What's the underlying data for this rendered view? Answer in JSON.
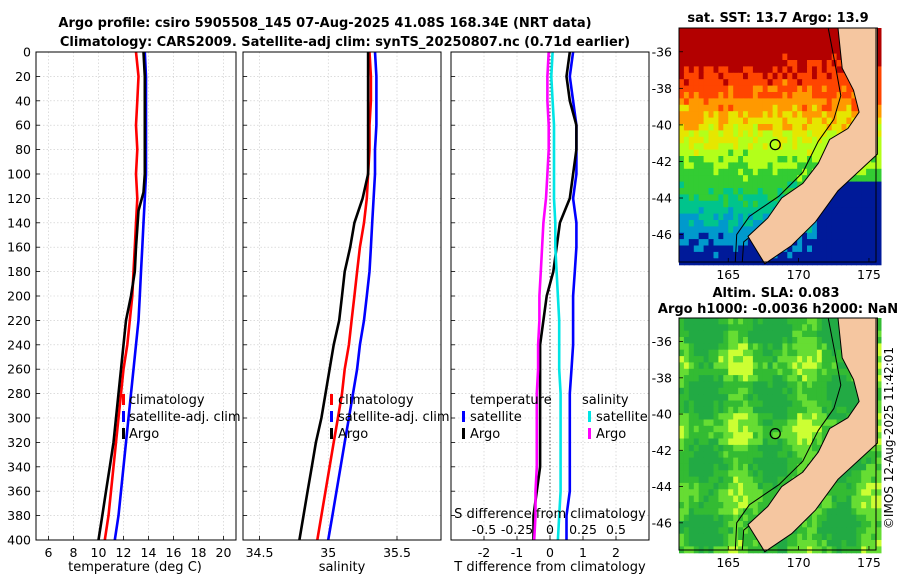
{
  "header": {
    "title_line1": "Argo profile: csiro 5905508_145 07-Aug-2025 41.08S 168.34E (NRT data)",
    "title_line2": "Climatology: CARS2009. Satellite-adj clim: synTS_20250807.nc (0.71d earlier)"
  },
  "colors": {
    "climatology": "#ff0000",
    "satellite": "#0000ff",
    "argo": "#000000",
    "sal_satellite": "#00e5e5",
    "sal_argo": "#ff00ff"
  },
  "chart_data": [
    {
      "type": "line",
      "id": "temperature",
      "xlabel": "temperature (deg C)",
      "ylabel": "",
      "xlim": [
        5,
        21
      ],
      "ylim": [
        0,
        400
      ],
      "xticks": [
        "6",
        "8",
        "10",
        "12",
        "14",
        "16",
        "18",
        "20"
      ],
      "xtick_values": [
        6,
        8,
        10,
        12,
        14,
        16,
        18,
        20
      ],
      "yticks": [
        "0",
        "20",
        "40",
        "60",
        "80",
        "100",
        "120",
        "140",
        "160",
        "180",
        "200",
        "220",
        "240",
        "260",
        "280",
        "300",
        "320",
        "340",
        "360",
        "380",
        "400"
      ],
      "y_inverted": true,
      "grid": true,
      "legend": {
        "position": "lower-right",
        "entries": [
          "climatology",
          "satellite-adj. clim",
          "Argo"
        ]
      },
      "series": [
        {
          "name": "climatology",
          "x": [
            13.0,
            13.2,
            13.1,
            13.0,
            13.1,
            13.0,
            13.1,
            13.0,
            12.9,
            12.8,
            12.7,
            12.5,
            12.3,
            12.0,
            11.8,
            11.6,
            11.4,
            11.2,
            11.0,
            10.8,
            10.5
          ],
          "y": [
            0,
            20,
            40,
            60,
            80,
            100,
            120,
            140,
            160,
            180,
            200,
            220,
            240,
            260,
            280,
            300,
            320,
            340,
            360,
            380,
            400
          ]
        },
        {
          "name": "satellite-adj. clim",
          "x": [
            13.7,
            13.8,
            13.8,
            13.8,
            13.8,
            13.8,
            13.7,
            13.6,
            13.5,
            13.4,
            13.3,
            13.2,
            13.0,
            12.8,
            12.6,
            12.4,
            12.2,
            12.0,
            11.8,
            11.6,
            11.3
          ],
          "y": [
            0,
            20,
            40,
            60,
            80,
            100,
            120,
            140,
            160,
            180,
            200,
            220,
            240,
            260,
            280,
            300,
            320,
            340,
            360,
            380,
            400
          ]
        },
        {
          "name": "Argo",
          "x": [
            13.6,
            13.7,
            13.7,
            13.7,
            13.7,
            13.7,
            13.6,
            13.2,
            13.0,
            12.9,
            12.6,
            12.2,
            12.0,
            11.8,
            11.6,
            11.4,
            11.2,
            10.9,
            10.6,
            10.3,
            10.0
          ],
          "y": [
            0,
            20,
            40,
            60,
            80,
            100,
            115,
            130,
            160,
            180,
            200,
            220,
            240,
            260,
            280,
            300,
            320,
            340,
            360,
            380,
            400
          ]
        }
      ]
    },
    {
      "type": "line",
      "id": "salinity",
      "xlabel": "salinity",
      "ylabel": "",
      "xlim": [
        34.38,
        35.82
      ],
      "ylim": [
        0,
        400
      ],
      "xticks": [
        "34.5",
        "35",
        "35.5"
      ],
      "xtick_values": [
        34.5,
        35,
        35.5
      ],
      "y_inverted": true,
      "grid": true,
      "legend": {
        "position": "lower-right",
        "entries": [
          "climatology",
          "satellite-adj. clim",
          "Argo"
        ]
      },
      "series": [
        {
          "name": "climatology",
          "x": [
            35.3,
            35.31,
            35.31,
            35.3,
            35.3,
            35.29,
            35.28,
            35.26,
            35.23,
            35.21,
            35.19,
            35.17,
            35.15,
            35.12,
            35.1,
            35.07,
            35.04,
            35.01,
            34.98,
            34.95,
            34.92
          ],
          "y": [
            0,
            20,
            40,
            60,
            80,
            100,
            120,
            140,
            160,
            180,
            200,
            220,
            240,
            260,
            280,
            300,
            320,
            340,
            360,
            380,
            400
          ]
        },
        {
          "name": "satellite-adj. clim",
          "x": [
            35.34,
            35.35,
            35.35,
            35.35,
            35.34,
            35.34,
            35.33,
            35.32,
            35.31,
            35.3,
            35.28,
            35.26,
            35.23,
            35.21,
            35.18,
            35.15,
            35.12,
            35.09,
            35.06,
            35.03,
            35.0
          ],
          "y": [
            0,
            20,
            40,
            60,
            80,
            100,
            120,
            140,
            160,
            180,
            200,
            220,
            240,
            260,
            280,
            300,
            320,
            340,
            360,
            380,
            400
          ]
        },
        {
          "name": "Argo",
          "x": [
            35.29,
            35.29,
            35.29,
            35.29,
            35.29,
            35.29,
            35.25,
            35.19,
            35.16,
            35.12,
            35.1,
            35.08,
            35.04,
            35.01,
            34.98,
            34.95,
            34.91,
            34.88,
            34.85,
            34.82,
            34.79
          ],
          "y": [
            0,
            20,
            40,
            60,
            80,
            100,
            120,
            140,
            160,
            180,
            200,
            220,
            240,
            260,
            280,
            300,
            320,
            340,
            360,
            380,
            400
          ]
        }
      ]
    },
    {
      "type": "line",
      "id": "difference",
      "xlabel": "T difference from climatology",
      "x2label": "S difference from climatology",
      "ylabel": "",
      "xlim": [
        -3,
        3
      ],
      "x2lim": [
        -0.75,
        0.75
      ],
      "ylim": [
        0,
        400
      ],
      "xticks": [
        "-2",
        "-1",
        "0",
        "1",
        "2"
      ],
      "xtick_values": [
        -2,
        -1,
        0,
        1,
        2
      ],
      "x2ticks": [
        "-0.5",
        "-0.25",
        "0",
        "0.25",
        "0.5"
      ],
      "x2tick_values": [
        -0.5,
        -0.25,
        0,
        0.25,
        0.5
      ],
      "y_inverted": true,
      "grid": true,
      "legend": {
        "position": "lower",
        "temperature_title": "temperature",
        "salinity_title": "salinity",
        "entries": [
          "satellite",
          "Argo",
          "satellite",
          "Argo"
        ]
      },
      "series": [
        {
          "name": "T satellite",
          "axis": "T",
          "x": [
            0.7,
            0.6,
            0.7,
            0.8,
            0.8,
            0.8,
            0.7,
            0.8,
            0.8,
            0.75,
            0.7,
            0.7,
            0.7,
            0.65,
            0.6,
            0.6,
            0.6,
            0.6,
            0.6,
            0.5,
            0.5
          ],
          "y": [
            0,
            20,
            40,
            60,
            80,
            100,
            120,
            140,
            160,
            180,
            200,
            220,
            240,
            260,
            280,
            300,
            320,
            340,
            360,
            380,
            400
          ]
        },
        {
          "name": "T Argo",
          "axis": "T",
          "x": [
            0.6,
            0.5,
            0.6,
            0.8,
            0.8,
            0.7,
            0.6,
            0.3,
            0.2,
            0.1,
            -0.1,
            -0.2,
            -0.3,
            -0.3,
            -0.3,
            -0.3,
            -0.3,
            -0.3,
            -0.4,
            -0.5,
            -0.5
          ],
          "y": [
            0,
            20,
            40,
            60,
            80,
            100,
            120,
            140,
            160,
            180,
            200,
            220,
            240,
            260,
            280,
            300,
            320,
            340,
            360,
            380,
            400
          ]
        },
        {
          "name": "S satellite",
          "axis": "S",
          "x": [
            0.02,
            0.01,
            0.02,
            0.03,
            0.03,
            0.03,
            0.03,
            0.04,
            0.04,
            0.05,
            0.06,
            0.07,
            0.07,
            0.07,
            0.08,
            0.08,
            0.08,
            0.08,
            0.08,
            0.07,
            0.06
          ],
          "y": [
            0,
            20,
            40,
            60,
            80,
            100,
            120,
            140,
            160,
            180,
            200,
            220,
            240,
            260,
            280,
            300,
            320,
            340,
            360,
            380,
            400
          ]
        },
        {
          "name": "S Argo",
          "axis": "S",
          "x": [
            -0.01,
            -0.02,
            -0.02,
            -0.01,
            -0.01,
            -0.02,
            -0.03,
            -0.05,
            -0.06,
            -0.07,
            -0.08,
            -0.08,
            -0.09,
            -0.09,
            -0.1,
            -0.1,
            -0.1,
            -0.1,
            -0.11,
            -0.11,
            -0.12
          ],
          "y": [
            0,
            20,
            40,
            60,
            80,
            100,
            120,
            140,
            160,
            180,
            200,
            220,
            240,
            260,
            280,
            300,
            320,
            340,
            360,
            380,
            400
          ]
        }
      ]
    },
    {
      "type": "heatmap",
      "id": "sst_map",
      "title": "sat. SST: 13.7 Argo: 13.9",
      "xticks": [
        "165",
        "170",
        "175"
      ],
      "xtick_values": [
        165,
        170,
        175
      ],
      "yticks": [
        "-36",
        "-38",
        "-40",
        "-42",
        "-44",
        "-46"
      ],
      "ytick_values": [
        -36,
        -38,
        -40,
        -42,
        -44,
        -46
      ],
      "xlim": [
        161.5,
        175.5
      ],
      "ylim": [
        -47.5,
        -34.7
      ],
      "marker": {
        "lon": 168.34,
        "lat": -41.08
      }
    },
    {
      "type": "heatmap",
      "id": "sla_map",
      "title": "Altim. SLA: 0.083",
      "subtitle": "Argo h1000: -0.0036 h2000: NaN",
      "xticks": [
        "165",
        "170",
        "175"
      ],
      "xtick_values": [
        165,
        170,
        175
      ],
      "yticks": [
        "-36",
        "-38",
        "-40",
        "-42",
        "-44",
        "-46"
      ],
      "ytick_values": [
        -36,
        -38,
        -40,
        -42,
        -44,
        -46
      ],
      "xlim": [
        161.5,
        175.5
      ],
      "ylim": [
        -47.5,
        -34.7
      ],
      "marker": {
        "lon": 168.34,
        "lat": -41.08
      }
    }
  ],
  "legend_labels": {
    "climatology": "climatology",
    "satellite_adj": "satellite-adj. clim",
    "argo": "Argo",
    "temperature": "temperature",
    "salinity": "salinity",
    "satellite": "satellite"
  },
  "footer": {
    "credit": "©IMOS 12-Aug-2025 11:42:01"
  }
}
